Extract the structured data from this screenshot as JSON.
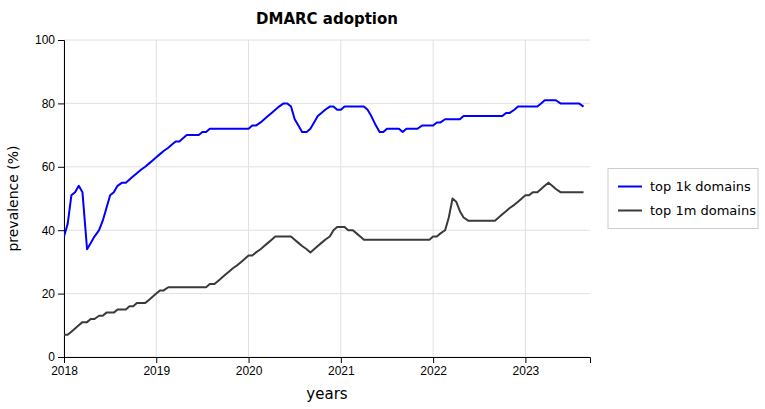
{
  "chart_data": {
    "type": "line",
    "title": "DMARC adoption",
    "x_label": "years",
    "y_label": "prevalence (%)",
    "xlim": [
      2018.0,
      2023.7
    ],
    "ylim": [
      0,
      100
    ],
    "xticks": [
      2018,
      2019,
      2020,
      2021,
      2022,
      2023
    ],
    "yticks": [
      0,
      20,
      40,
      60,
      80,
      100
    ],
    "grid": true,
    "legend": "right",
    "x": [
      2018.0,
      2018.04,
      2018.08,
      2018.12,
      2018.16,
      2018.2,
      2018.25,
      2018.29,
      2018.33,
      2018.38,
      2018.42,
      2018.46,
      2018.5,
      2018.54,
      2018.58,
      2018.63,
      2018.67,
      2018.71,
      2018.75,
      2018.79,
      2018.83,
      2018.88,
      2018.92,
      2018.96,
      2019.0,
      2019.04,
      2019.08,
      2019.13,
      2019.17,
      2019.21,
      2019.25,
      2019.29,
      2019.33,
      2019.38,
      2019.42,
      2019.46,
      2019.5,
      2019.54,
      2019.58,
      2019.63,
      2019.67,
      2019.71,
      2019.75,
      2019.79,
      2019.83,
      2019.88,
      2019.92,
      2019.96,
      2020.0,
      2020.04,
      2020.08,
      2020.13,
      2020.17,
      2020.21,
      2020.25,
      2020.29,
      2020.33,
      2020.38,
      2020.42,
      2020.46,
      2020.5,
      2020.54,
      2020.58,
      2020.63,
      2020.67,
      2020.71,
      2020.75,
      2020.79,
      2020.83,
      2020.88,
      2020.92,
      2020.96,
      2021.0,
      2021.04,
      2021.08,
      2021.13,
      2021.17,
      2021.21,
      2021.25,
      2021.29,
      2021.33,
      2021.38,
      2021.42,
      2021.46,
      2021.5,
      2021.54,
      2021.58,
      2021.63,
      2021.67,
      2021.71,
      2021.75,
      2021.79,
      2021.83,
      2021.88,
      2021.92,
      2021.96,
      2022.0,
      2022.04,
      2022.08,
      2022.13,
      2022.17,
      2022.21,
      2022.25,
      2022.29,
      2022.33,
      2022.38,
      2022.42,
      2022.46,
      2022.5,
      2022.54,
      2022.58,
      2022.63,
      2022.67,
      2022.71,
      2022.75,
      2022.79,
      2022.83,
      2022.88,
      2022.92,
      2022.96,
      2023.0,
      2023.04,
      2023.08,
      2023.13,
      2023.17,
      2023.21,
      2023.25,
      2023.29,
      2023.33,
      2023.38,
      2023.42,
      2023.46,
      2023.5,
      2023.54,
      2023.58,
      2023.63
    ],
    "series": [
      {
        "name": "top 1k domains",
        "color": "#0000ff",
        "values": [
          38,
          42,
          51,
          52,
          54,
          52,
          34,
          36,
          38,
          40,
          43,
          47,
          51,
          52,
          54,
          55,
          55,
          56,
          57,
          58,
          59,
          60,
          61,
          62,
          63,
          64,
          65,
          66,
          67,
          68,
          68,
          69,
          70,
          70,
          70,
          70,
          71,
          71,
          72,
          72,
          72,
          72,
          72,
          72,
          72,
          72,
          72,
          72,
          72,
          73,
          73,
          74,
          75,
          76,
          77,
          78,
          79,
          80,
          80,
          79,
          75,
          73,
          71,
          71,
          72,
          74,
          76,
          77,
          78,
          79,
          79,
          78,
          78,
          79,
          79,
          79,
          79,
          79,
          79,
          78,
          76,
          73,
          71,
          71,
          72,
          72,
          72,
          72,
          71,
          72,
          72,
          72,
          72,
          73,
          73,
          73,
          73,
          74,
          74,
          75,
          75,
          75,
          75,
          75,
          76,
          76,
          76,
          76,
          76,
          76,
          76,
          76,
          76,
          76,
          76,
          77,
          77,
          78,
          79,
          79,
          79,
          79,
          79,
          79,
          80,
          81,
          81,
          81,
          81,
          80,
          80,
          80,
          80,
          80,
          80,
          79
        ]
      },
      {
        "name": "top 1m domains",
        "color": "#3a3a3a",
        "values": [
          7,
          7,
          8,
          9,
          10,
          11,
          11,
          12,
          12,
          13,
          13,
          14,
          14,
          14,
          15,
          15,
          15,
          16,
          16,
          17,
          17,
          17,
          18,
          19,
          20,
          21,
          21,
          22,
          22,
          22,
          22,
          22,
          22,
          22,
          22,
          22,
          22,
          22,
          23,
          23,
          24,
          25,
          26,
          27,
          28,
          29,
          30,
          31,
          32,
          32,
          33,
          34,
          35,
          36,
          37,
          38,
          38,
          38,
          38,
          38,
          37,
          36,
          35,
          34,
          33,
          34,
          35,
          36,
          37,
          38,
          40,
          41,
          41,
          41,
          40,
          40,
          39,
          38,
          37,
          37,
          37,
          37,
          37,
          37,
          37,
          37,
          37,
          37,
          37,
          37,
          37,
          37,
          37,
          37,
          37,
          37,
          38,
          38,
          39,
          40,
          44,
          50,
          49,
          46,
          44,
          43,
          43,
          43,
          43,
          43,
          43,
          43,
          43,
          44,
          45,
          46,
          47,
          48,
          49,
          50,
          51,
          51,
          52,
          52,
          53,
          54,
          55,
          54,
          53,
          52,
          52,
          52,
          52,
          52,
          52,
          52
        ]
      }
    ]
  }
}
